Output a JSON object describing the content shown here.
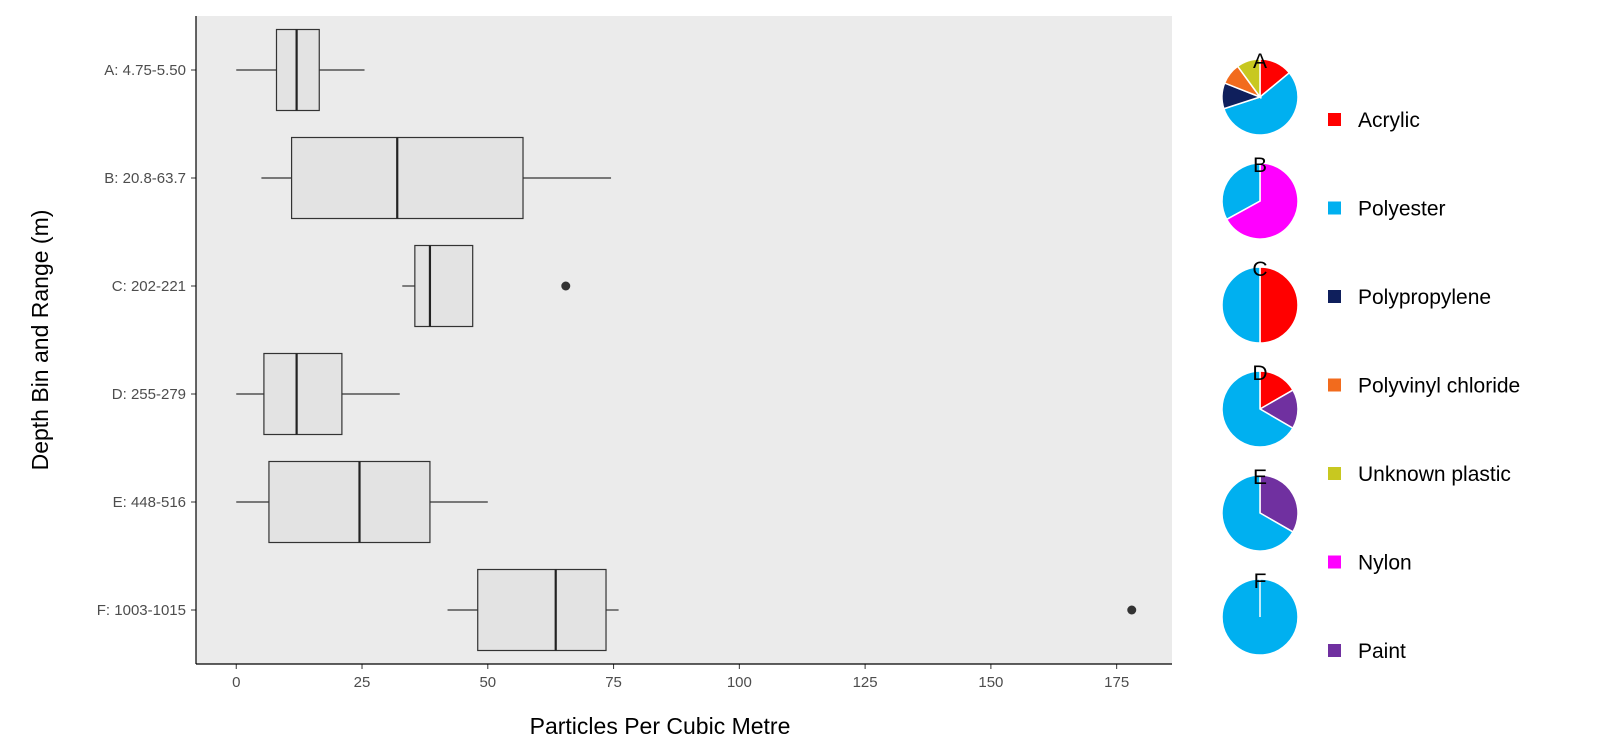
{
  "chart_data": [
    {
      "type": "boxplot",
      "orientation": "horizontal",
      "title": "",
      "xlabel": "Particles Per Cubic Metre",
      "ylabel": "Depth Bin and Range (m)",
      "xlim": [
        -8,
        186
      ],
      "xticks": [
        0,
        25,
        50,
        75,
        100,
        125,
        150,
        175
      ],
      "grid": false,
      "background": "#ebebeb",
      "box_fill": "#e3e3e3",
      "categories": [
        "A: 4.75-5.50",
        "B: 20.8-63.7",
        "C: 202-221",
        "D: 255-279",
        "E: 448-516",
        "F: 1003-1015"
      ],
      "boxes": [
        {
          "min": 0,
          "q1": 8,
          "median": 12,
          "q3": 16.5,
          "max": 25.5,
          "outliers": []
        },
        {
          "min": 5,
          "q1": 11,
          "median": 32,
          "q3": 57,
          "max": 74.5,
          "outliers": []
        },
        {
          "min": 33,
          "q1": 35.5,
          "median": 38.5,
          "q3": 47,
          "max": 47,
          "outliers": [
            65.5
          ]
        },
        {
          "min": 0,
          "q1": 5.5,
          "median": 12,
          "q3": 21,
          "max": 32.5,
          "outliers": []
        },
        {
          "min": 0,
          "q1": 6.5,
          "median": 24.5,
          "q3": 38.5,
          "max": 50,
          "outliers": []
        },
        {
          "min": 42,
          "q1": 48,
          "median": 63.5,
          "q3": 73.5,
          "max": 76,
          "outliers": [
            178
          ]
        }
      ]
    },
    {
      "type": "pie",
      "legend_position": "right",
      "legend": [
        {
          "name": "Acrylic",
          "color": "#ff0000"
        },
        {
          "name": "Polyester",
          "color": "#00b0f0"
        },
        {
          "name": "Polypropylene",
          "color": "#0f1f5c"
        },
        {
          "name": "Polyvinyl chloride",
          "color": "#f26b1d"
        },
        {
          "name": "Unknown plastic",
          "color": "#c8c820"
        },
        {
          "name": "Nylon",
          "color": "#ff00ff"
        },
        {
          "name": "Paint",
          "color": "#7030a0"
        }
      ],
      "pies": [
        {
          "label": "A",
          "slices": [
            {
              "name": "Acrylic",
              "value": 0.14
            },
            {
              "name": "Polyester",
              "value": 0.56
            },
            {
              "name": "Polypropylene",
              "value": 0.11
            },
            {
              "name": "Polyvinyl chloride",
              "value": 0.09
            },
            {
              "name": "Unknown plastic",
              "value": 0.1
            }
          ]
        },
        {
          "label": "B",
          "slices": [
            {
              "name": "Nylon",
              "value": 0.67
            },
            {
              "name": "Polyester",
              "value": 0.33
            }
          ]
        },
        {
          "label": "C",
          "slices": [
            {
              "name": "Acrylic",
              "value": 0.5
            },
            {
              "name": "Polyester",
              "value": 0.5
            }
          ]
        },
        {
          "label": "D",
          "slices": [
            {
              "name": "Acrylic",
              "value": 0.167
            },
            {
              "name": "Paint",
              "value": 0.167
            },
            {
              "name": "Polyester",
              "value": 0.666
            }
          ]
        },
        {
          "label": "E",
          "slices": [
            {
              "name": "Paint",
              "value": 0.333
            },
            {
              "name": "Polyester",
              "value": 0.667
            }
          ]
        },
        {
          "label": "F",
          "slices": [
            {
              "name": "Polyester",
              "value": 1.0
            }
          ]
        }
      ]
    }
  ]
}
